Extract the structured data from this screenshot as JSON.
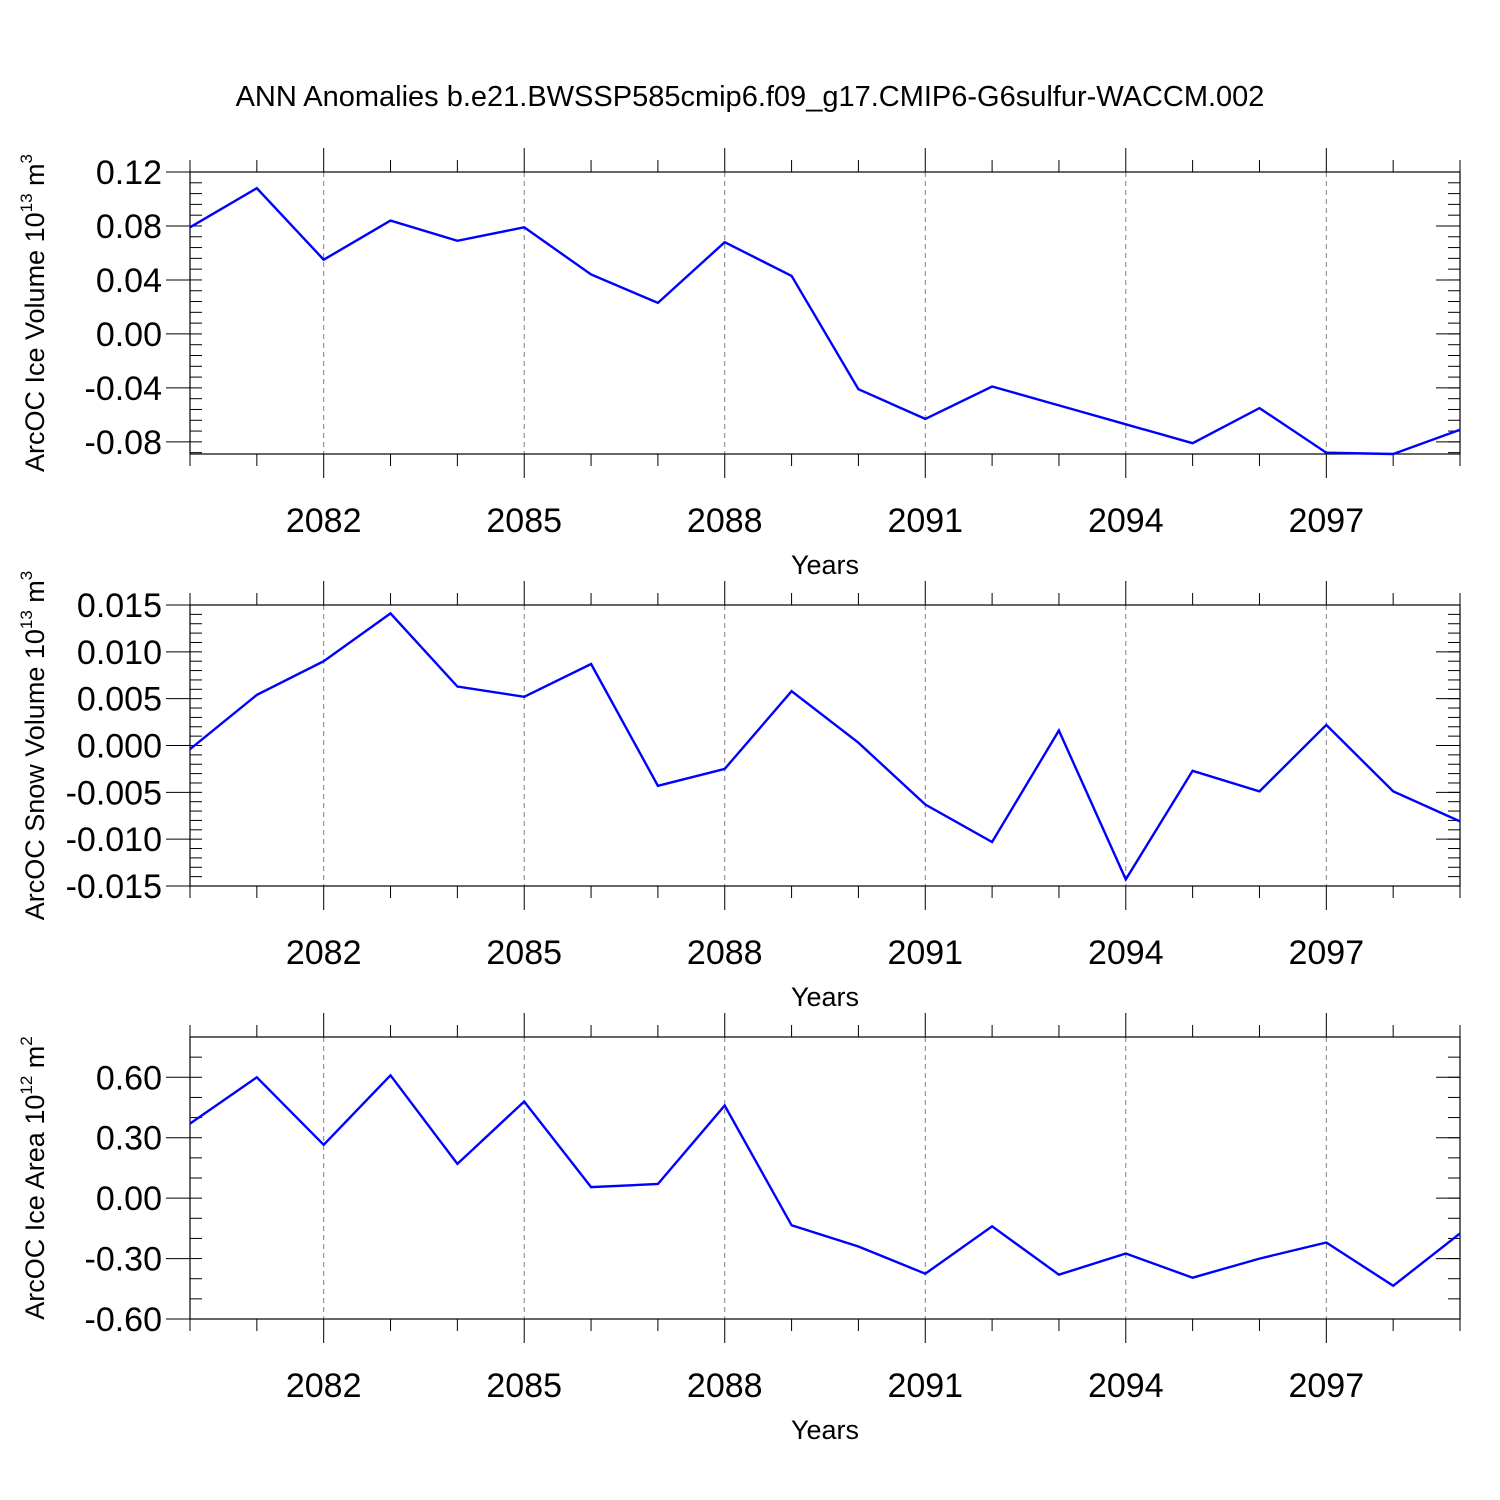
{
  "title": "ANN Anomalies b.e21.BWSSP585cmip6.f09_g17.CMIP6-G6sulfur-WACCM.002",
  "chart_data": [
    {
      "type": "line",
      "ylabel_main": "ArcOC Ice Volume 10",
      "ylabel_sup": "13",
      "ylabel_unit": " m",
      "ylabel_unit_sup": "3",
      "xlabel": "Years",
      "x": [
        2080,
        2081,
        2082,
        2083,
        2084,
        2085,
        2086,
        2087,
        2088,
        2089,
        2090,
        2091,
        2092,
        2093,
        2094,
        2095,
        2096,
        2097,
        2098,
        2099
      ],
      "values": [
        0.079,
        0.108,
        0.055,
        0.084,
        0.069,
        0.079,
        0.044,
        0.023,
        0.068,
        0.043,
        -0.041,
        -0.063,
        -0.039,
        -0.053,
        -0.067,
        -0.081,
        -0.055,
        -0.088,
        -0.089,
        -0.071
      ],
      "xlim": [
        2080,
        2099
      ],
      "ylim": [
        -0.089,
        0.12
      ],
      "xticks": [
        "2082",
        "2085",
        "2088",
        "2091",
        "2094",
        "2097"
      ],
      "yticks": [
        "0.12",
        "0.08",
        "0.04",
        "0.00",
        "-0.04",
        "-0.08"
      ],
      "color": "#0000ff"
    },
    {
      "type": "line",
      "ylabel_main": "ArcOC Snow Volume 10",
      "ylabel_sup": "13",
      "ylabel_unit": " m",
      "ylabel_unit_sup": "3",
      "xlabel": "Years",
      "x": [
        2080,
        2081,
        2082,
        2083,
        2084,
        2085,
        2086,
        2087,
        2088,
        2089,
        2090,
        2091,
        2092,
        2093,
        2094,
        2095,
        2096,
        2097,
        2098,
        2099
      ],
      "values": [
        -0.0004,
        0.0054,
        0.009,
        0.0141,
        0.0063,
        0.0052,
        0.0087,
        -0.0043,
        -0.0025,
        0.0058,
        0.0003,
        -0.0063,
        -0.0103,
        0.0016,
        -0.0143,
        -0.0027,
        -0.0049,
        0.0022,
        -0.0049,
        -0.0081
      ],
      "xlim": [
        2080,
        2099
      ],
      "ylim": [
        -0.015,
        0.015
      ],
      "xticks": [
        "2082",
        "2085",
        "2088",
        "2091",
        "2094",
        "2097"
      ],
      "yticks": [
        "0.015",
        "0.010",
        "0.005",
        "0.000",
        "-0.005",
        "-0.010",
        "-0.015"
      ],
      "color": "#0000ff"
    },
    {
      "type": "line",
      "ylabel_main": "ArcOC Ice Area 10",
      "ylabel_sup": "12",
      "ylabel_unit": " m",
      "ylabel_unit_sup": "2",
      "xlabel": "Years",
      "x": [
        2080,
        2081,
        2082,
        2083,
        2084,
        2085,
        2086,
        2087,
        2088,
        2089,
        2090,
        2091,
        2092,
        2093,
        2094,
        2095,
        2096,
        2097,
        2098,
        2099
      ],
      "values": [
        0.37,
        0.6,
        0.265,
        0.61,
        0.17,
        0.48,
        0.055,
        0.07,
        0.46,
        -0.135,
        -0.24,
        -0.375,
        -0.14,
        -0.38,
        -0.275,
        -0.395,
        -0.3,
        -0.22,
        -0.435,
        -0.175
      ],
      "xlim": [
        2080,
        2099
      ],
      "ylim": [
        -0.6,
        0.8
      ],
      "xticks": [
        "2082",
        "2085",
        "2088",
        "2091",
        "2094",
        "2097"
      ],
      "yticks": [
        "0.60",
        "0.30",
        "0.00",
        "-0.30",
        "-0.60"
      ],
      "color": "#0000ff"
    }
  ]
}
